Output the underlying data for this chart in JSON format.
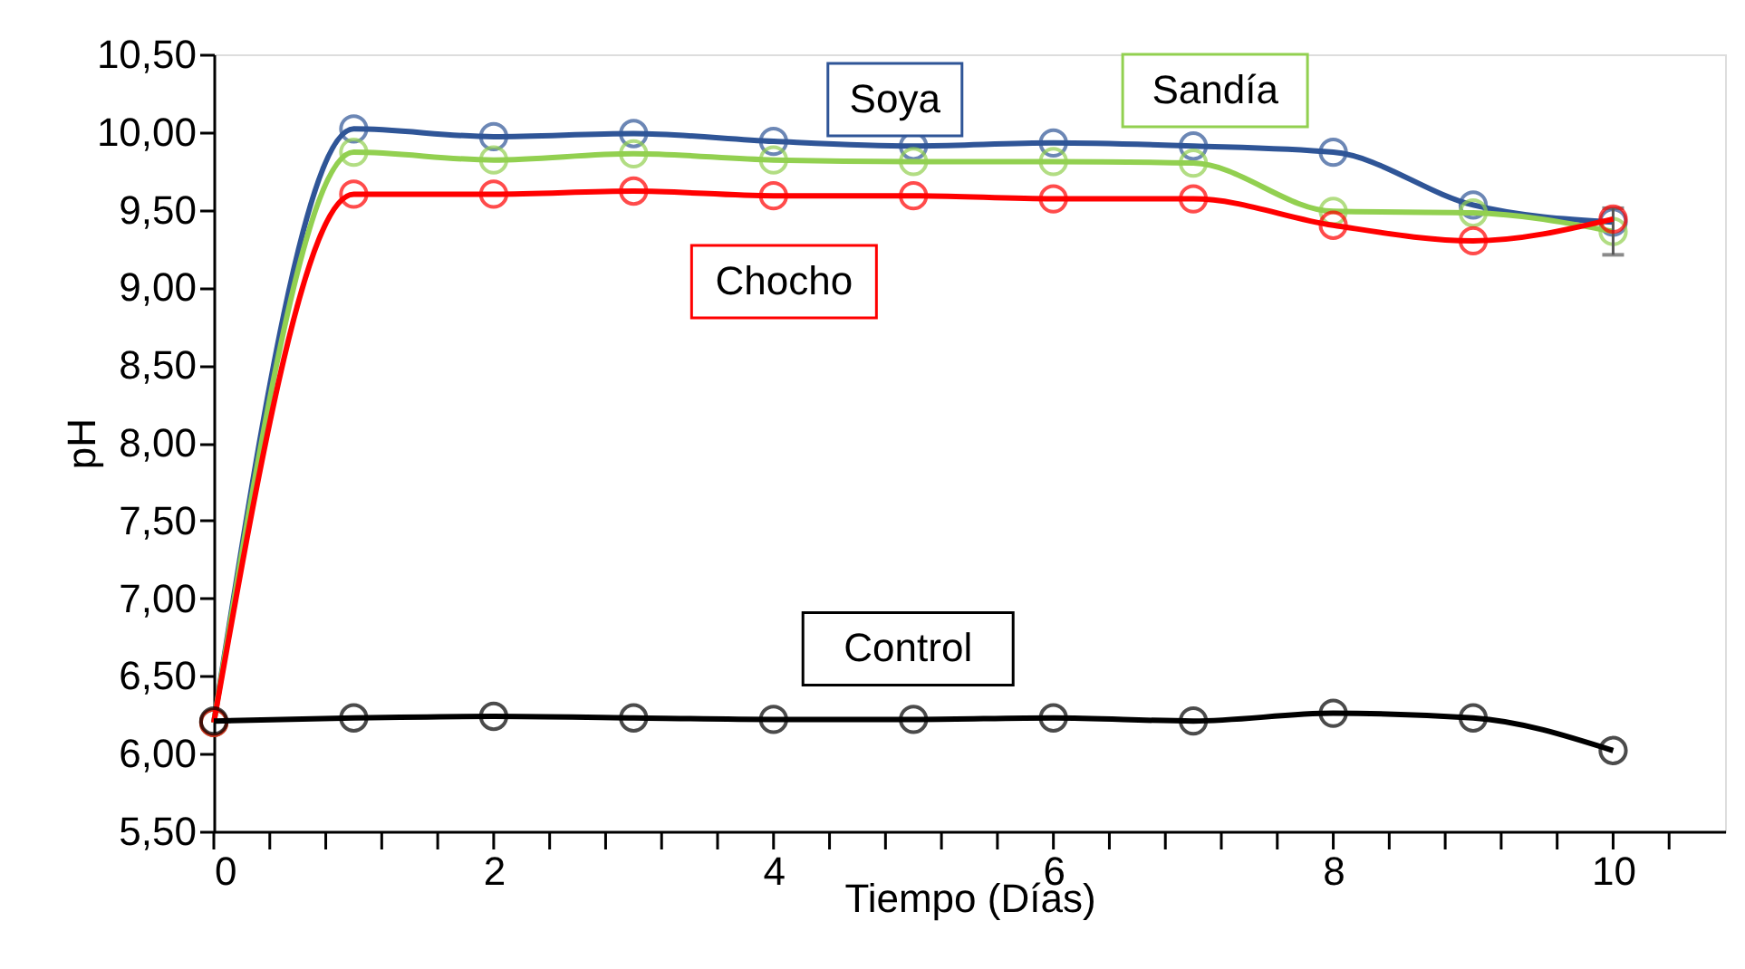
{
  "chart_data": {
    "type": "line",
    "xlabel": "Tiempo (Días)",
    "ylabel": "pH",
    "x": [
      0,
      1,
      2,
      3,
      4,
      5,
      6,
      7,
      8,
      9,
      10
    ],
    "series": [
      {
        "name": "Soya",
        "color": "#2f5597",
        "values": [
          6.2,
          10.02,
          9.97,
          9.99,
          9.94,
          9.91,
          9.93,
          9.91,
          9.87,
          9.53,
          9.42
        ]
      },
      {
        "name": "Sandía",
        "color": "#92d050",
        "values": [
          6.2,
          9.87,
          9.82,
          9.86,
          9.82,
          9.81,
          9.81,
          9.8,
          9.49,
          9.48,
          9.36
        ],
        "errors": [
          null,
          null,
          null,
          null,
          null,
          null,
          null,
          null,
          null,
          null,
          0.15
        ]
      },
      {
        "name": "Chocho",
        "color": "#ff0000",
        "values": [
          6.2,
          9.6,
          9.6,
          9.62,
          9.59,
          9.59,
          9.57,
          9.57,
          9.4,
          9.3,
          9.44
        ]
      },
      {
        "name": "Control",
        "color": "#000000",
        "values": [
          6.21,
          6.23,
          6.24,
          6.23,
          6.22,
          6.22,
          6.23,
          6.21,
          6.26,
          6.23,
          6.02
        ]
      }
    ],
    "xlim": [
      0,
      10.8
    ],
    "xticks": [
      0,
      {
        "value": 0.4,
        "label": null
      },
      {
        "value": 0.8,
        "label": null
      },
      {
        "value": 1.2,
        "label": null
      },
      {
        "value": 1.6,
        "label": null
      },
      2,
      {
        "value": 2.4,
        "label": null
      },
      {
        "value": 2.8,
        "label": null
      },
      {
        "value": 3.2,
        "label": null
      },
      {
        "value": 3.6,
        "label": null
      },
      4,
      {
        "value": 4.4,
        "label": null
      },
      {
        "value": 4.8,
        "label": null
      },
      {
        "value": 5.2,
        "label": null
      },
      {
        "value": 5.6,
        "label": null
      },
      6,
      {
        "value": 6.4,
        "label": null
      },
      {
        "value": 6.8,
        "label": null
      },
      {
        "value": 7.2,
        "label": null
      },
      {
        "value": 7.6,
        "label": null
      },
      8,
      {
        "value": 8.4,
        "label": null
      },
      {
        "value": 8.8,
        "label": null
      },
      {
        "value": 9.2,
        "label": null
      },
      {
        "value": 9.6,
        "label": null
      },
      10,
      {
        "value": 10.4,
        "label": null
      }
    ],
    "ylim": [
      5.5,
      10.5
    ],
    "yticks": [
      {
        "value": 5.5,
        "label": "5,50"
      },
      {
        "value": 6,
        "label": "6,00"
      },
      {
        "value": 6.5,
        "label": "6,50"
      },
      {
        "value": 7,
        "label": "7,00"
      },
      {
        "value": 7.5,
        "label": "7,50"
      },
      {
        "value": 8,
        "label": "8,00"
      },
      {
        "value": 8.5,
        "label": "8,50"
      },
      {
        "value": 9,
        "label": "9,00"
      },
      {
        "value": 9.5,
        "label": "9,50"
      },
      {
        "value": 10,
        "label": "10,00"
      },
      {
        "value": 10.5,
        "label": "10,50"
      }
    ],
    "grid": false,
    "legend": false,
    "marker": "circle",
    "line_style": "solid"
  }
}
